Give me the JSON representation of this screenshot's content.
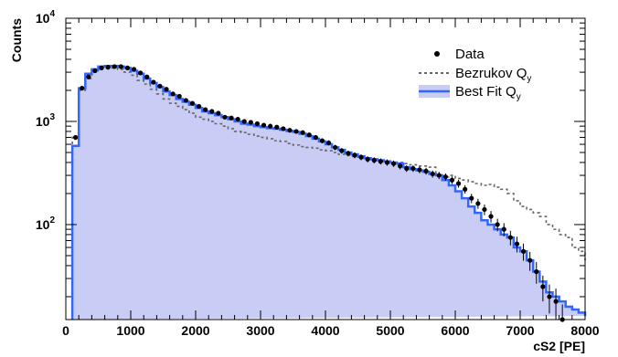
{
  "chart_data": {
    "type": "histogram",
    "xlabel": "cS2 [PE]",
    "ylabel": "Counts",
    "xlim": [
      0,
      8000
    ],
    "ylim": [
      12,
      10000
    ],
    "yscale": "log",
    "grid": false,
    "legend_position": "top-right",
    "x_ticks": [
      "0",
      "1000",
      "2000",
      "3000",
      "4000",
      "5000",
      "6000",
      "7000",
      "8000"
    ],
    "y_ticks": [
      {
        "base": "10",
        "exp": "2",
        "value": 100
      },
      {
        "base": "10",
        "exp": "3",
        "value": 1000
      },
      {
        "base": "10",
        "exp": "4",
        "value": 10000
      }
    ],
    "bin_edges": [
      100,
      200,
      300,
      400,
      500,
      600,
      700,
      800,
      900,
      1000,
      1100,
      1200,
      1300,
      1400,
      1500,
      1600,
      1700,
      1800,
      1900,
      2000,
      2100,
      2200,
      2300,
      2400,
      2500,
      2600,
      2700,
      2800,
      2900,
      3000,
      3100,
      3200,
      3300,
      3400,
      3500,
      3600,
      3700,
      3800,
      3900,
      4000,
      4100,
      4200,
      4300,
      4400,
      4500,
      4600,
      4700,
      4800,
      4900,
      5000,
      5100,
      5200,
      5300,
      5400,
      5500,
      5600,
      5700,
      5800,
      5900,
      6000,
      6100,
      6200,
      6300,
      6400,
      6500,
      6600,
      6700,
      6800,
      6900,
      7000,
      7100,
      7200,
      7300,
      7400,
      7500,
      7600,
      7700,
      7800,
      7900,
      8000
    ],
    "series": [
      {
        "name": "Data",
        "label_subscript": "",
        "style": "points",
        "color": "#000000",
        "x": [
          150,
          250,
          350,
          450,
          550,
          650,
          750,
          850,
          950,
          1050,
          1150,
          1250,
          1350,
          1450,
          1550,
          1650,
          1750,
          1850,
          1950,
          2050,
          2150,
          2250,
          2350,
          2450,
          2550,
          2650,
          2750,
          2850,
          2950,
          3050,
          3150,
          3250,
          3350,
          3450,
          3550,
          3650,
          3750,
          3850,
          3950,
          4050,
          4150,
          4250,
          4350,
          4450,
          4550,
          4650,
          4750,
          4850,
          4950,
          5050,
          5150,
          5250,
          5350,
          5450,
          5550,
          5650,
          5750,
          5850,
          5950,
          6050,
          6150,
          6250,
          6350,
          6450,
          6550,
          6650,
          6750,
          6850,
          6950,
          7050,
          7150,
          7250,
          7350,
          7450,
          7550,
          7650
        ],
        "values": [
          700,
          2100,
          2700,
          3100,
          3300,
          3350,
          3400,
          3400,
          3300,
          3200,
          2950,
          2700,
          2400,
          2200,
          2050,
          1850,
          1750,
          1600,
          1500,
          1400,
          1300,
          1250,
          1200,
          1100,
          1080,
          1050,
          1000,
          980,
          950,
          920,
          900,
          880,
          850,
          820,
          800,
          780,
          740,
          700,
          650,
          620,
          560,
          520,
          490,
          470,
          450,
          430,
          420,
          410,
          400,
          390,
          370,
          350,
          350,
          340,
          330,
          310,
          300,
          290,
          270,
          250,
          220,
          180,
          160,
          140,
          120,
          100,
          90,
          75,
          65,
          55,
          45,
          35,
          25,
          20,
          18,
          12
        ]
      },
      {
        "name": "Bezrukov Q",
        "label_subscript": "y",
        "style": "dashed-step",
        "color": "#666666",
        "values": [
          700,
          2000,
          2600,
          3000,
          3250,
          3300,
          3300,
          3200,
          3000,
          2800,
          2500,
          2300,
          2050,
          1850,
          1650,
          1500,
          1400,
          1300,
          1200,
          1100,
          1050,
          1000,
          950,
          900,
          850,
          800,
          780,
          750,
          720,
          700,
          680,
          650,
          640,
          610,
          590,
          570,
          560,
          550,
          530,
          520,
          500,
          480,
          470,
          460,
          450,
          440,
          430,
          420,
          410,
          400,
          400,
          390,
          380,
          370,
          370,
          360,
          300,
          290,
          300,
          280,
          270,
          260,
          250,
          240,
          245,
          230,
          220,
          200,
          170,
          150,
          140,
          130,
          120,
          100,
          90,
          80,
          75,
          60,
          55,
          45
        ]
      },
      {
        "name": "Best Fit Q",
        "label_subscript": "y",
        "style": "filled-step",
        "color": "#3366ff",
        "fill": "#c9cdf5",
        "values": [
          580,
          2100,
          2900,
          3200,
          3400,
          3450,
          3450,
          3400,
          3300,
          3100,
          2900,
          2600,
          2350,
          2150,
          1950,
          1800,
          1650,
          1550,
          1450,
          1350,
          1250,
          1200,
          1150,
          1100,
          1050,
          1000,
          950,
          930,
          900,
          880,
          860,
          850,
          830,
          810,
          790,
          760,
          720,
          680,
          640,
          600,
          560,
          530,
          500,
          480,
          460,
          440,
          430,
          420,
          410,
          400,
          390,
          360,
          345,
          335,
          325,
          310,
          300,
          270,
          240,
          210,
          180,
          150,
          130,
          110,
          100,
          90,
          80,
          75,
          60,
          55,
          45,
          35,
          28,
          22,
          20,
          18,
          16,
          15,
          14,
          13
        ]
      }
    ]
  }
}
